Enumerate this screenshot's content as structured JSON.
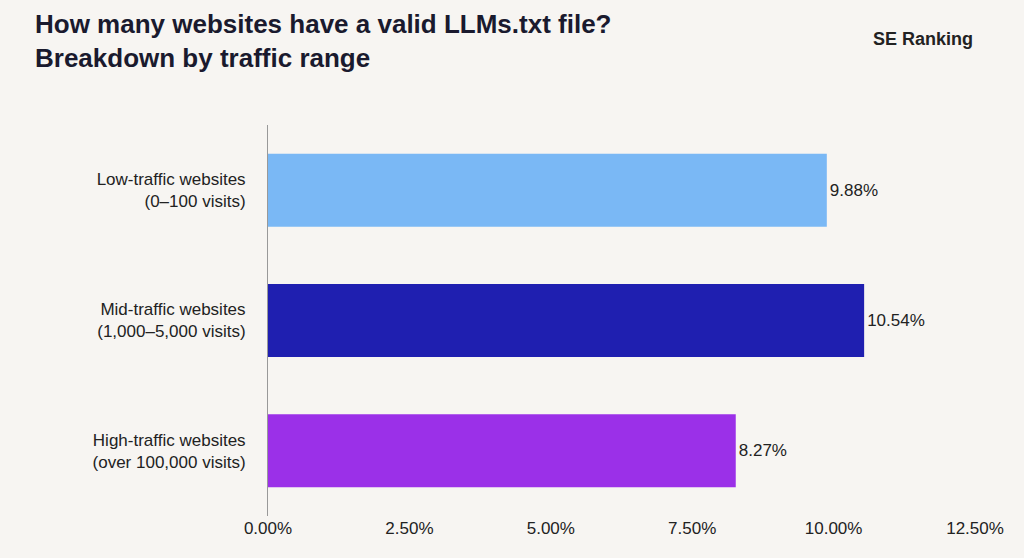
{
  "chart_data": {
    "type": "bar",
    "orientation": "horizontal",
    "title": "How many websites have a valid LLMs.txt file?",
    "subtitle": "Breakdown by traffic range",
    "annotations": [
      "SE Ranking"
    ],
    "categories": [
      "Low-traffic websites (0–100 visits)",
      "Mid-traffic websites (1,000–5,000 visits)",
      "High-traffic websites (over 100,000 visits)"
    ],
    "values": [
      9.88,
      10.54,
      8.27
    ],
    "value_labels": [
      "9.88%",
      "10.54%",
      "8.27%"
    ],
    "colors": [
      "#7ab8f5",
      "#1f1fb0",
      "#9b30e8"
    ],
    "data_labels": true,
    "grid": false,
    "xlim": [
      0,
      12.5
    ],
    "xticks": [
      {
        "value": 0,
        "label": "0.00%"
      },
      {
        "value": 2.5,
        "label": "2.50%"
      },
      {
        "value": 5,
        "label": "5.00%"
      },
      {
        "value": 7.5,
        "label": "7.50%"
      },
      {
        "value": 10,
        "label": "10.00%"
      },
      {
        "value": 12.5,
        "label": "12.50%"
      }
    ]
  }
}
